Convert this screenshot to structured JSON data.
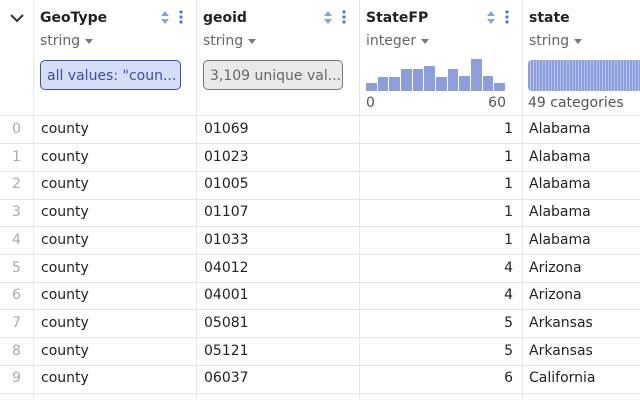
{
  "columns": [
    {
      "name": "GeoType",
      "dtype": "string",
      "summary": "all values: \"coun..."
    },
    {
      "name": "geoid",
      "dtype": "string",
      "summary": "3,109 unique val..."
    },
    {
      "name": "StateFP",
      "dtype": "integer",
      "histogram": {
        "counts": [
          8,
          14,
          14,
          22,
          22,
          25,
          14,
          22,
          15,
          32,
          15,
          8
        ],
        "range": [
          0,
          60
        ]
      }
    },
    {
      "name": "state",
      "dtype": "string",
      "summary": "49 categories"
    }
  ],
  "rows": [
    [
      0,
      "county",
      "01069",
      1,
      "Alabama"
    ],
    [
      1,
      "county",
      "01023",
      1,
      "Alabama"
    ],
    [
      2,
      "county",
      "01005",
      1,
      "Alabama"
    ],
    [
      3,
      "county",
      "01107",
      1,
      "Alabama"
    ],
    [
      4,
      "county",
      "01033",
      1,
      "Alabama"
    ],
    [
      5,
      "county",
      "04012",
      4,
      "Arizona"
    ],
    [
      6,
      "county",
      "04001",
      4,
      "Arizona"
    ],
    [
      7,
      "county",
      "05081",
      5,
      "Arkansas"
    ],
    [
      8,
      "county",
      "05121",
      5,
      "Arkansas"
    ],
    [
      9,
      "county",
      "06037",
      6,
      "California"
    ]
  ]
}
